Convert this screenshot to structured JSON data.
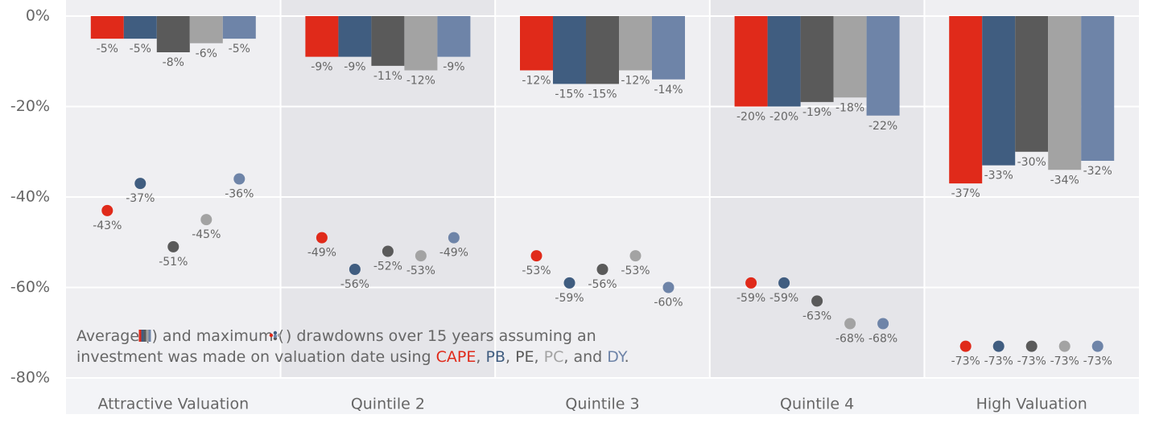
{
  "chart_data": {
    "type": "bar",
    "categories": [
      "Attractive Valuation",
      "Quintile 2",
      "Quintile 3",
      "Quintile 4",
      "High Valuation"
    ],
    "series": [
      {
        "name": "CAPE",
        "color": "#e02a1a",
        "values": [
          -5,
          -9,
          -12,
          -20,
          -37
        ],
        "value_labels": [
          "-5%",
          "-9%",
          "-12%",
          "-20%",
          "-37%"
        ],
        "max_values": [
          -43,
          -49,
          -53,
          -59,
          -73
        ],
        "max_value_labels": [
          "-43%",
          "-49%",
          "-53%",
          "-59%",
          "-73%"
        ]
      },
      {
        "name": "PB",
        "color": "#405d80",
        "values": [
          -5,
          -9,
          -15,
          -20,
          -33
        ],
        "value_labels": [
          "-5%",
          "-9%",
          "-15%",
          "-20%",
          "-33%"
        ],
        "max_values": [
          -37,
          -56,
          -59,
          -59,
          -73
        ],
        "max_value_labels": [
          "-37%",
          "-56%",
          "-59%",
          "-59%",
          "-73%"
        ]
      },
      {
        "name": "PE",
        "color": "#5a5a5a",
        "values": [
          -8,
          -11,
          -15,
          -19,
          -30
        ],
        "value_labels": [
          "-8%",
          "-11%",
          "-15%",
          "-19%",
          "-30%"
        ],
        "max_values": [
          -51,
          -52,
          -56,
          -63,
          -73
        ],
        "max_value_labels": [
          "-51%",
          "-52%",
          "-56%",
          "-63%",
          "-73%"
        ]
      },
      {
        "name": "PC",
        "color": "#a3a3a3",
        "values": [
          -6,
          -12,
          -12,
          -18,
          -34
        ],
        "value_labels": [
          "-6%",
          "-12%",
          "-12%",
          "-18%",
          "-34%"
        ],
        "max_values": [
          -45,
          -53,
          -53,
          -68,
          -73
        ],
        "max_value_labels": [
          "-45%",
          "-53%",
          "-53%",
          "-68%",
          "-73%"
        ]
      },
      {
        "name": "DY",
        "color": "#6e84a8",
        "values": [
          -5,
          -9,
          -14,
          -22,
          -32
        ],
        "value_labels": [
          "-5%",
          "-9%",
          "-14%",
          "-22%",
          "-32%"
        ],
        "max_values": [
          -36,
          -49,
          -60,
          -68,
          -73
        ],
        "max_value_labels": [
          "-36%",
          "-49%",
          "-60%",
          "-68%",
          "-73%"
        ]
      }
    ],
    "ylim": [
      0,
      -80
    ],
    "yticks": [
      {
        "value": 0,
        "label": "0%"
      },
      {
        "value": -20,
        "label": "-20%"
      },
      {
        "value": -40,
        "label": "-40%"
      },
      {
        "value": -60,
        "label": "-60%"
      },
      {
        "value": -80,
        "label": "-80%"
      }
    ],
    "grid": true,
    "annotation": {
      "line1": [
        "Average (",
        ") and maximum (",
        ") drawdowns over 15 years assuming an"
      ],
      "line2": [
        "investment was made on valuation date using ",
        ", ",
        ", ",
        ", ",
        ", and ",
        "."
      ]
    }
  }
}
